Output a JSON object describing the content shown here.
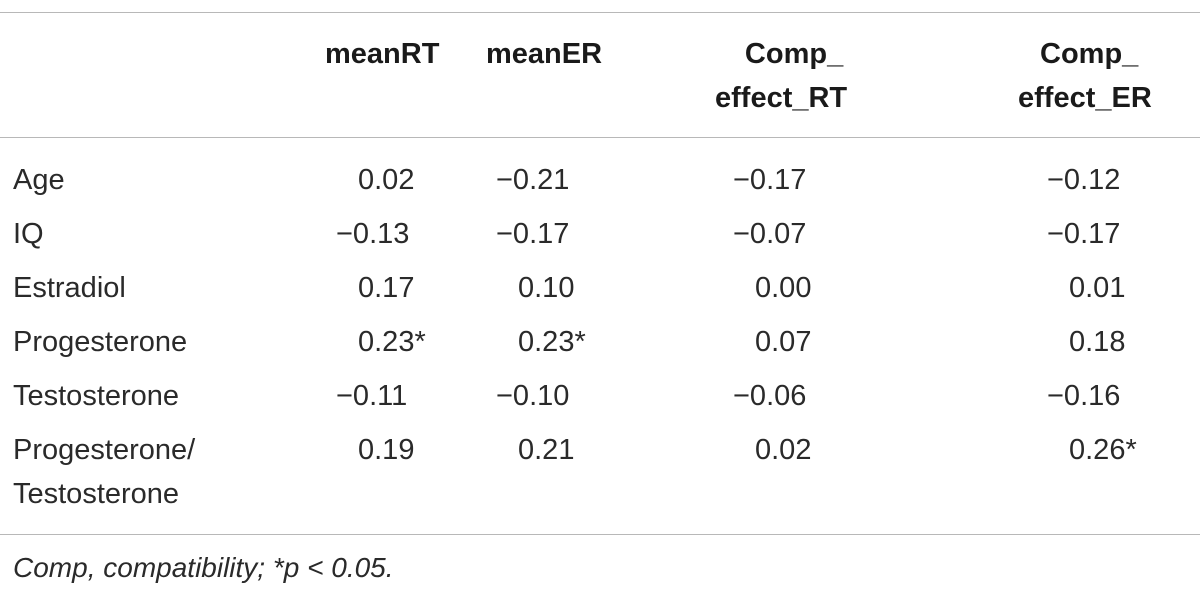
{
  "table": {
    "headers": [
      {
        "lines": [
          "meanRT"
        ]
      },
      {
        "lines": [
          "meanER"
        ]
      },
      {
        "lines": [
          "Comp_",
          "effect_RT"
        ]
      },
      {
        "lines": [
          "Comp_",
          "effect_ER"
        ]
      }
    ],
    "rows": [
      {
        "label": [
          "Age"
        ],
        "values": [
          "0.02",
          "−0.21",
          "−0.17",
          "−0.12"
        ]
      },
      {
        "label": [
          "IQ"
        ],
        "values": [
          "−0.13",
          "−0.17",
          "−0.07",
          "−0.17"
        ]
      },
      {
        "label": [
          "Estradiol"
        ],
        "values": [
          "0.17",
          "0.10",
          "0.00",
          "0.01"
        ]
      },
      {
        "label": [
          "Progesterone"
        ],
        "values": [
          "0.23*",
          "0.23*",
          "0.07",
          "0.18"
        ]
      },
      {
        "label": [
          "Testosterone"
        ],
        "values": [
          "−0.11",
          "−0.10",
          "−0.06",
          "−0.16"
        ]
      },
      {
        "label": [
          "Progesterone/",
          "Testosterone"
        ],
        "values": [
          "0.19",
          "0.21",
          "0.02",
          "0.26*"
        ]
      }
    ]
  },
  "footnote": "Comp, compatibility; *p < 0.05."
}
